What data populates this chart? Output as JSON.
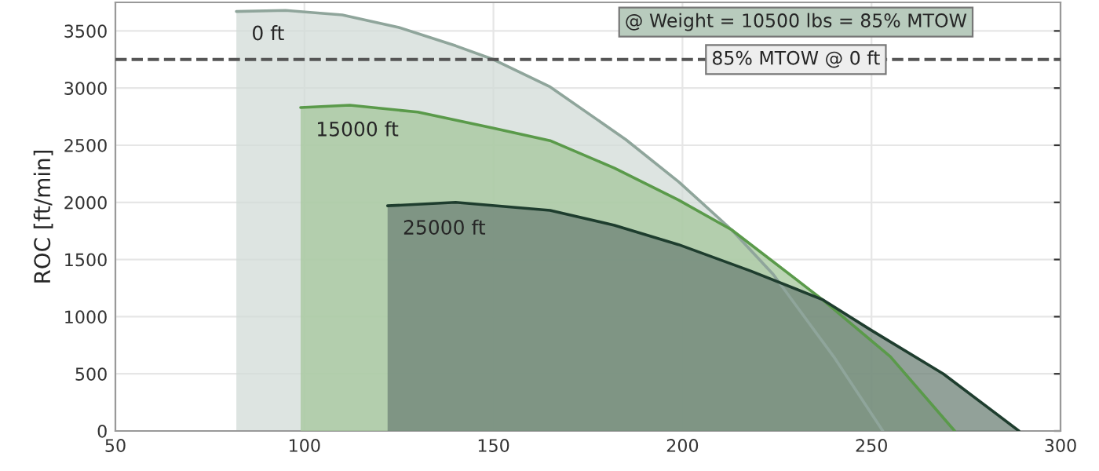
{
  "chart_data": {
    "type": "area",
    "ylabel": "ROC [ft/min]",
    "annotations": [
      "@ Weight = 10500 lbs = 85% MTOW"
    ],
    "series": [
      {
        "name": "0 ft",
        "color": "#8fa59b",
        "x": [
          82,
          95,
          110,
          125,
          140,
          150,
          165,
          185,
          199,
          213,
          224,
          240,
          253
        ],
        "values": [
          3670,
          3680,
          3640,
          3530,
          3370,
          3250,
          3010,
          2550,
          2180,
          1760,
          1370,
          650,
          0
        ]
      },
      {
        "name": "15000 ft",
        "color": "#5a9a4a",
        "x": [
          99,
          112,
          130,
          150,
          165,
          182,
          199,
          213,
          237,
          255,
          272
        ],
        "values": [
          2830,
          2850,
          2790,
          2650,
          2540,
          2300,
          2020,
          1760,
          1150,
          650,
          0
        ]
      },
      {
        "name": "25000 ft",
        "color": "#1e3d2e",
        "x": [
          122,
          140,
          165,
          182,
          199,
          218,
          237,
          250,
          269,
          289
        ],
        "values": [
          1970,
          2000,
          1930,
          1800,
          1630,
          1400,
          1150,
          880,
          500,
          0
        ]
      }
    ],
    "xlim": [
      50,
      300
    ],
    "xticks": [
      50,
      100,
      150,
      200,
      250,
      300
    ],
    "ylim": [
      0,
      3750
    ],
    "yticks": [
      0,
      500,
      1000,
      1500,
      2000,
      2500,
      3000,
      3500
    ],
    "ref_lines": [
      {
        "axis": "y",
        "value": 3250,
        "label": "85% MTOW @ 0 ft",
        "color": "#555555",
        "line_style": "dashed"
      }
    ],
    "grid": true
  }
}
